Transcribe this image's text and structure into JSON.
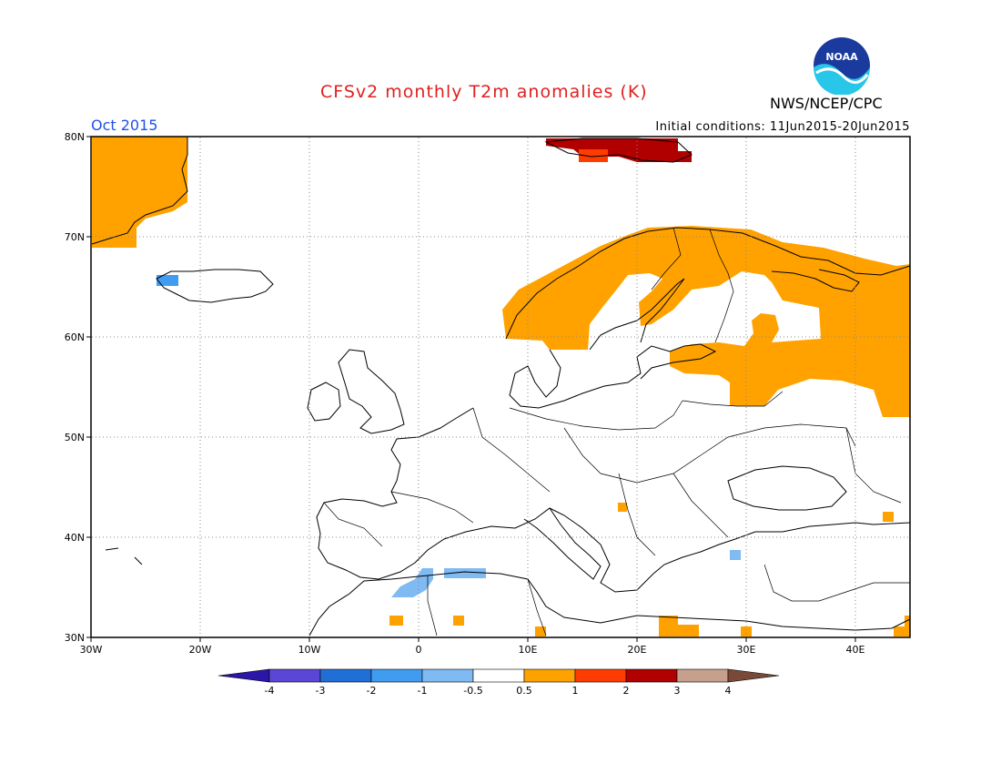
{
  "header": {
    "title": "CFSv2 monthly T2m anomalies (K)",
    "agency": "NWS/NCEP/CPC",
    "month": "Oct 2015",
    "initial_conditions": "Initial conditions: 11Jun2015-20Jun2015",
    "logo_text": "NOAA"
  },
  "map": {
    "lat_labels": [
      "80N",
      "70N",
      "60N",
      "50N",
      "40N",
      "30N"
    ],
    "lon_labels": [
      "30W",
      "20W",
      "10W",
      "0",
      "10E",
      "20E",
      "30E",
      "40E"
    ],
    "extent": {
      "lon": [
        -30,
        45
      ],
      "lat": [
        30,
        80
      ]
    }
  },
  "legend": {
    "labels": [
      "-4",
      "-3",
      "-2",
      "-1",
      "-0.5",
      "0.5",
      "1",
      "2",
      "3",
      "4"
    ],
    "colors": [
      "#2b16a8",
      "#5b47d6",
      "#1f6fd6",
      "#3f9cf0",
      "#7fbaf2",
      "#ffffff",
      "#ffa200",
      "#ff3c00",
      "#b00000",
      "#c6a08c",
      "#7a4a38"
    ]
  },
  "colors": {
    "warm": "#ffa200",
    "orange_red": "#ff3c00",
    "dark_red": "#b00000",
    "light_blue": "#7fbaf2",
    "blue": "#3f9cf0"
  }
}
